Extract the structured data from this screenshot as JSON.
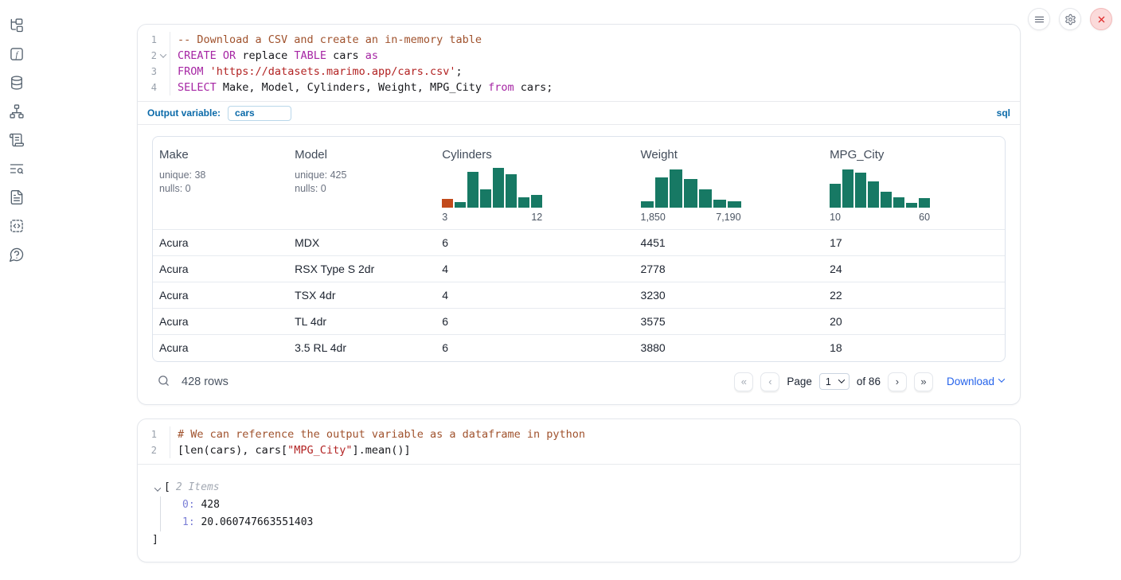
{
  "colors": {
    "accent_blue": "#0b6aa9",
    "link_blue": "#2563eb",
    "histogram_teal": "#177964",
    "histogram_orange": "#c24a1c",
    "keyword_purple": "#a626a4",
    "comment_brown": "#a0522d",
    "string_red": "#b22222"
  },
  "topbar": {
    "buttons": [
      {
        "name": "notebook-menu",
        "icon": "hamburger-menu-icon"
      },
      {
        "name": "settings",
        "icon": "gear-icon"
      },
      {
        "name": "shutdown",
        "icon": "close-icon"
      }
    ]
  },
  "sidebar": {
    "items": [
      {
        "icon": "file-explorer-icon"
      },
      {
        "icon": "variables-icon"
      },
      {
        "icon": "datasources-icon"
      },
      {
        "icon": "dependency-graph-icon"
      },
      {
        "icon": "scratchpad-icon"
      },
      {
        "icon": "logs-search-icon"
      },
      {
        "icon": "documentation-icon"
      },
      {
        "icon": "snippets-icon"
      },
      {
        "icon": "help-icon"
      }
    ]
  },
  "sql_cell": {
    "language_badge": "sql",
    "output_variable_label": "Output variable:",
    "output_variable_value": "cars",
    "code_lines": [
      {
        "num": "1",
        "fold": false,
        "tokens": [
          {
            "t": "-- Download a CSV and create an in-memory table",
            "c": "comment"
          }
        ]
      },
      {
        "num": "2",
        "fold": true,
        "tokens": [
          {
            "t": "CREATE",
            "c": "kw"
          },
          {
            "t": " ",
            "c": ""
          },
          {
            "t": "OR",
            "c": "kw"
          },
          {
            "t": " replace ",
            "c": ""
          },
          {
            "t": "TABLE",
            "c": "kw"
          },
          {
            "t": " cars ",
            "c": ""
          },
          {
            "t": "as",
            "c": "kw"
          }
        ]
      },
      {
        "num": "3",
        "fold": false,
        "tokens": [
          {
            "t": "FROM",
            "c": "kw"
          },
          {
            "t": " ",
            "c": ""
          },
          {
            "t": "'https://datasets.marimo.app/cars.csv'",
            "c": "str"
          },
          {
            "t": ";",
            "c": ""
          }
        ]
      },
      {
        "num": "4",
        "fold": false,
        "tokens": [
          {
            "t": "SELECT",
            "c": "kw"
          },
          {
            "t": " Make, Model, Cylinders, Weight, MPG_City ",
            "c": ""
          },
          {
            "t": "from",
            "c": "kw"
          },
          {
            "t": " cars;",
            "c": ""
          }
        ]
      }
    ]
  },
  "table": {
    "columns": [
      {
        "name": "Make",
        "stats": [
          "unique: 38",
          "nulls: 0"
        ]
      },
      {
        "name": "Model",
        "stats": [
          "unique: 425",
          "nulls: 0"
        ]
      },
      {
        "name": "Cylinders",
        "histogram": {
          "min_label": "3",
          "max_label": "12",
          "values": [
            11,
            7,
            45,
            23,
            50,
            42,
            13,
            16
          ],
          "first_bar_highlighted": true
        }
      },
      {
        "name": "Weight",
        "histogram": {
          "min_label": "1,850",
          "max_label": "7,190",
          "values": [
            8,
            38,
            48,
            36,
            23,
            10,
            8
          ],
          "first_bar_highlighted": false
        }
      },
      {
        "name": "MPG_City",
        "histogram": {
          "min_label": "10",
          "max_label": "60",
          "values": [
            30,
            48,
            44,
            33,
            20,
            13,
            6,
            12
          ],
          "first_bar_highlighted": false
        }
      }
    ],
    "rows": [
      [
        "Acura",
        "MDX",
        "6",
        "4451",
        "17"
      ],
      [
        "Acura",
        "RSX Type S 2dr",
        "4",
        "2778",
        "24"
      ],
      [
        "Acura",
        "TSX 4dr",
        "4",
        "3230",
        "22"
      ],
      [
        "Acura",
        "TL 4dr",
        "6",
        "3575",
        "20"
      ],
      [
        "Acura",
        "3.5 RL 4dr",
        "6",
        "3880",
        "18"
      ]
    ],
    "footer": {
      "row_count": "428 rows",
      "page_label": "Page",
      "page_value": "1",
      "of_label": "of 86",
      "download_label": "Download"
    }
  },
  "python_cell": {
    "code_lines": [
      {
        "num": "1",
        "fold": false,
        "tokens": [
          {
            "t": "# We can reference the output variable as a dataframe in python",
            "c": "comment"
          }
        ]
      },
      {
        "num": "2",
        "fold": false,
        "tokens": [
          {
            "t": "[len(cars), cars[",
            "c": ""
          },
          {
            "t": "\"MPG_City\"",
            "c": "str"
          },
          {
            "t": "].mean()]",
            "c": ""
          }
        ]
      }
    ]
  },
  "list_output": {
    "open_bracket": "[",
    "items_label": "2 Items",
    "items": [
      {
        "key": "0:",
        "value": "428"
      },
      {
        "key": "1:",
        "value": "20.060747663551403"
      }
    ],
    "close_bracket": "]"
  }
}
